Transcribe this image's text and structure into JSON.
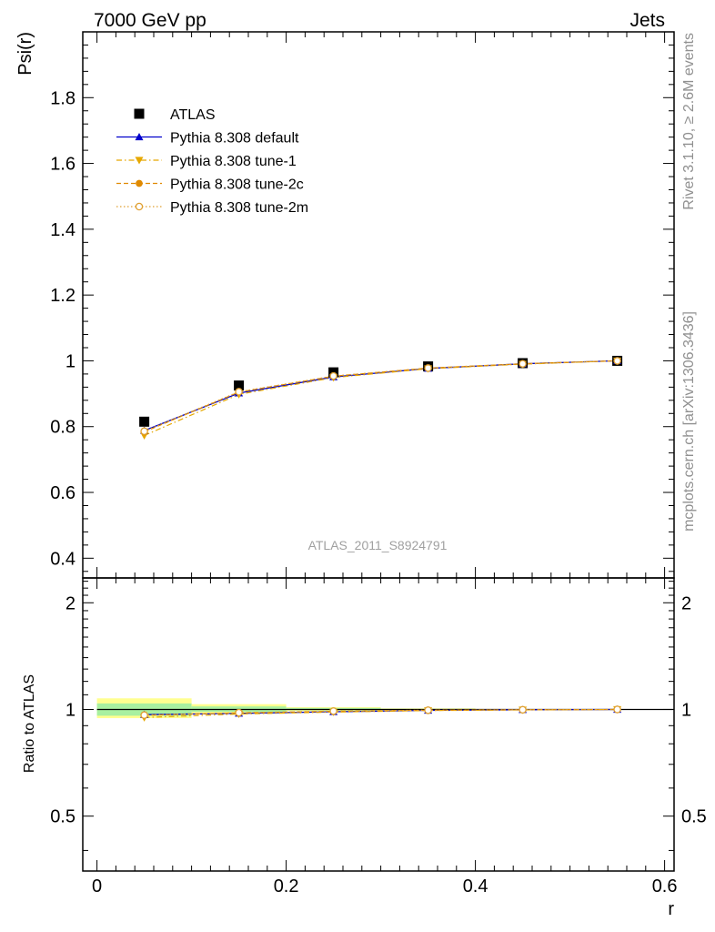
{
  "header": {
    "left": "7000 GeV pp",
    "right": "Jets"
  },
  "side_text": {
    "rivet": "Rivet 3.1.10, ≥ 2.6M events",
    "mcplots": "mcplots.cern.ch [arXiv:1306.3436]"
  },
  "watermark": "ATLAS_2011_S8924791",
  "colors": {
    "data": "#000000",
    "default": "#0000cc",
    "tune1": "#e6a800",
    "tune2c": "#e08a00",
    "tune2m": "#e0a030",
    "band_green": "#a8f0a0",
    "band_yellow": "#ffff90"
  },
  "chart_data": [
    {
      "type": "line",
      "panel": "main",
      "ylabel": "Psi(r)",
      "xlim": [
        -0.015,
        0.61
      ],
      "ylim": [
        0.34,
        2.0
      ],
      "yticks": [
        0.4,
        0.6,
        0.8,
        1.0,
        1.2,
        1.4,
        1.6,
        1.8
      ],
      "ytick_labels": [
        "0.4",
        "0.6",
        "0.8",
        "1",
        "1.2",
        "1.4",
        "1.6",
        "1.8"
      ],
      "legend_position": "top-left",
      "x": [
        0.05,
        0.15,
        0.25,
        0.35,
        0.45,
        0.55
      ],
      "series": [
        {
          "name": "ATLAS",
          "marker": "square",
          "values": [
            0.815,
            0.925,
            0.965,
            0.983,
            0.993,
            1.0
          ]
        },
        {
          "name": "Pythia 8.308 default",
          "marker": "triangle-up",
          "line": "solid",
          "values": [
            0.788,
            0.902,
            0.951,
            0.977,
            0.991,
            1.0
          ]
        },
        {
          "name": "Pythia 8.308 tune-1",
          "marker": "triangle-down",
          "line": "dashdot",
          "values": [
            0.773,
            0.898,
            0.949,
            0.976,
            0.99,
            1.0
          ]
        },
        {
          "name": "Pythia 8.308 tune-2c",
          "marker": "circle",
          "line": "dashed",
          "values": [
            0.784,
            0.905,
            0.953,
            0.978,
            0.991,
            1.0
          ]
        },
        {
          "name": "Pythia 8.308 tune-2m",
          "marker": "circle-open",
          "line": "dotted",
          "values": [
            0.786,
            0.906,
            0.954,
            0.978,
            0.991,
            1.0
          ]
        }
      ]
    },
    {
      "type": "line",
      "panel": "ratio",
      "ylabel": "Ratio to ATLAS",
      "xlabel": "r",
      "xlim": [
        -0.015,
        0.61
      ],
      "ylim": [
        0.35,
        2.35
      ],
      "xticks": [
        0,
        0.2,
        0.4,
        0.6
      ],
      "xtick_labels": [
        "0",
        "0.2",
        "0.4",
        "0.6"
      ],
      "yticks": [
        0.5,
        1,
        2
      ],
      "ytick_labels": [
        "0.5",
        "1",
        "2"
      ],
      "x": [
        0.05,
        0.15,
        0.25,
        0.35,
        0.45,
        0.55
      ],
      "bins": [
        [
          0.0,
          0.1
        ],
        [
          0.1,
          0.2
        ],
        [
          0.2,
          0.3
        ],
        [
          0.3,
          0.4
        ],
        [
          0.4,
          0.5
        ],
        [
          0.5,
          0.6
        ]
      ],
      "band_green": [
        [
          0.96,
          1.04
        ],
        [
          0.985,
          1.02
        ],
        [
          0.995,
          1.01
        ],
        [
          0.998,
          1.004
        ],
        [
          0.999,
          1.002
        ],
        [
          1.0,
          1.0
        ]
      ],
      "band_yellow": [
        [
          0.945,
          1.075
        ],
        [
          0.975,
          1.035
        ],
        [
          0.99,
          1.015
        ],
        [
          0.995,
          1.007
        ],
        [
          0.998,
          1.003
        ],
        [
          1.0,
          1.0
        ]
      ],
      "series": [
        {
          "name": "Pythia 8.308 default",
          "marker": "triangle-up",
          "line": "solid",
          "values": [
            0.967,
            0.975,
            0.985,
            0.994,
            0.998,
            1.0
          ]
        },
        {
          "name": "Pythia 8.308 tune-1",
          "marker": "triangle-down",
          "line": "dashdot",
          "values": [
            0.949,
            0.971,
            0.983,
            0.993,
            0.997,
            1.0
          ]
        },
        {
          "name": "Pythia 8.308 tune-2c",
          "marker": "circle",
          "line": "dashed",
          "values": [
            0.962,
            0.978,
            0.988,
            0.995,
            0.998,
            1.0
          ]
        },
        {
          "name": "Pythia 8.308 tune-2m",
          "marker": "circle-open",
          "line": "dotted",
          "values": [
            0.964,
            0.979,
            0.989,
            0.995,
            0.998,
            1.0
          ]
        }
      ]
    }
  ]
}
